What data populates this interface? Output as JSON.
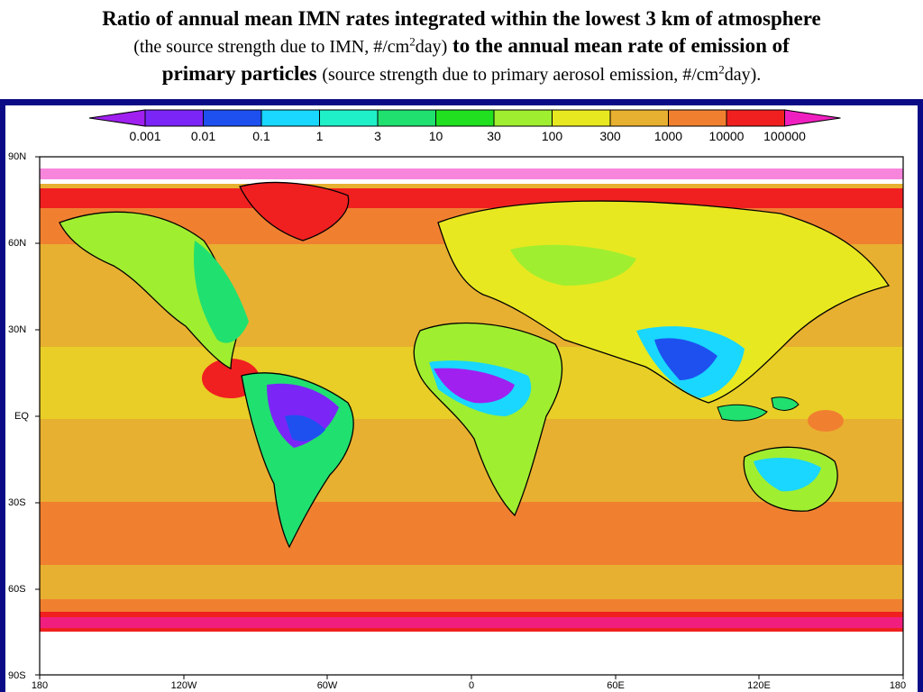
{
  "title": {
    "line1": "Ratio of annual mean IMN rates integrated within the lowest 3 km of atmosphere",
    "line2_a": "(the source strength due to IMN, #/cm",
    "line2_sup": "2",
    "line2_b": "day)",
    "line2_c": "to the annual mean rate of emission of",
    "line3_a": "primary particles",
    "line3_b": "(source strength due to primary aerosol emission, #/cm",
    "line3_sup": "2",
    "line3_c": "day)."
  },
  "legend": {
    "levels": [
      "0.001",
      "0.01",
      "0.1",
      "1",
      "3",
      "10",
      "30",
      "100",
      "300",
      "1000",
      "10000",
      "100000"
    ],
    "colors": [
      "#a020f0",
      "#7b26f6",
      "#1e50f0",
      "#19d7ff",
      "#20f0c8",
      "#20e070",
      "#20e020",
      "#a0ee30",
      "#e8e820",
      "#e8b030",
      "#f08030",
      "#f02020",
      "#f020c0"
    ]
  },
  "axes": {
    "lat_labels": [
      "90N",
      "60N",
      "30N",
      "EQ",
      "30S",
      "60S",
      "90S"
    ],
    "lon_labels": [
      "180",
      "120W",
      "60W",
      "0",
      "60E",
      "120E",
      "180"
    ]
  }
}
